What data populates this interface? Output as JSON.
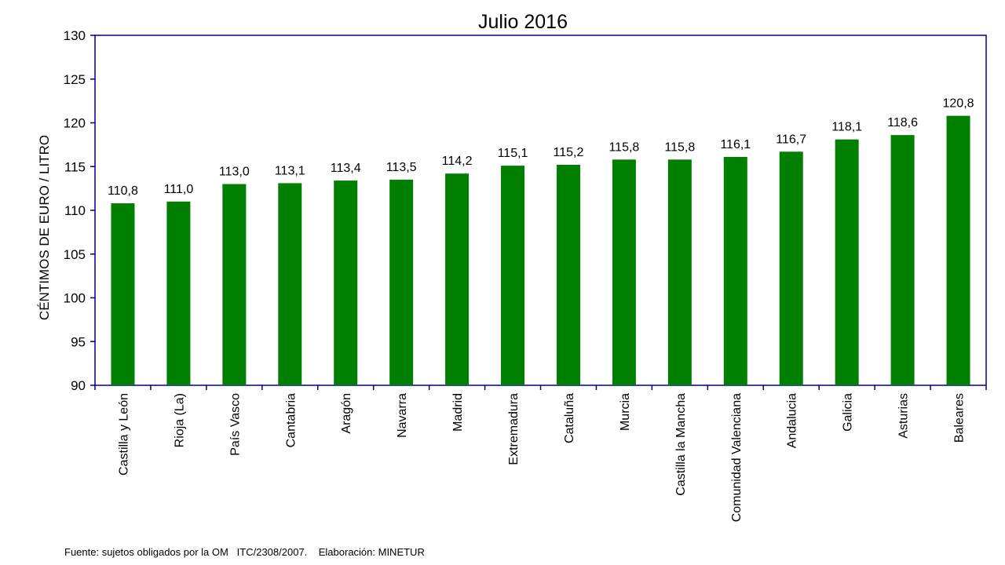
{
  "chart_data": {
    "type": "bar",
    "title": "Julio 2016",
    "ylabel": "CÉNTIMOS DE EURO / LITRO",
    "xlabel": "",
    "ylim": [
      90,
      130
    ],
    "yticks": [
      "90",
      "95",
      "100",
      "105",
      "110",
      "115",
      "120",
      "125",
      "130"
    ],
    "categories": [
      "Castilla y León",
      "Rioja (La)",
      "País Vasco",
      "Cantabria",
      "Aragón",
      "Navarra",
      "Madrid",
      "Extremadura",
      "Cataluña",
      "Murcia",
      "Castilla la Mancha",
      "Comunidad Valenciana",
      "Andalucia",
      "Galicia",
      "Asturias",
      "Baleares"
    ],
    "values": [
      110.8,
      111.0,
      113.0,
      113.1,
      113.4,
      113.5,
      114.2,
      115.1,
      115.2,
      115.8,
      115.8,
      116.1,
      116.7,
      118.1,
      118.6,
      120.8
    ],
    "data_labels": [
      "110,8",
      "111,0",
      "113,0",
      "113,1",
      "113,4",
      "113,5",
      "114,2",
      "115,1",
      "115,2",
      "115,8",
      "115,8",
      "116,1",
      "116,7",
      "118,1",
      "118,6",
      "120,8"
    ],
    "bar_color": "#007f00",
    "axis_color": "#000080",
    "grid": false,
    "legend": "none"
  },
  "footer": {
    "source": "Fuente: sujetos obligados por la OM   ITC/2308/2007.    Elaboración: MINETUR"
  }
}
